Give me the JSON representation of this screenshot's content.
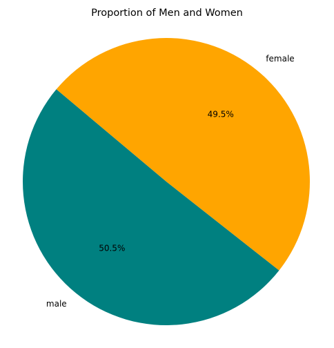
{
  "chart_data": {
    "type": "pie",
    "title": "Proportion of Men and Women",
    "labels": [
      "male",
      "female"
    ],
    "values": [
      50.5,
      49.5
    ],
    "percent_labels": [
      "50.5%",
      "49.5%"
    ],
    "colors": [
      "#008080",
      "#FFA500"
    ],
    "start_angle_deg": 140,
    "direction": "counterclockwise",
    "legend": "none"
  }
}
